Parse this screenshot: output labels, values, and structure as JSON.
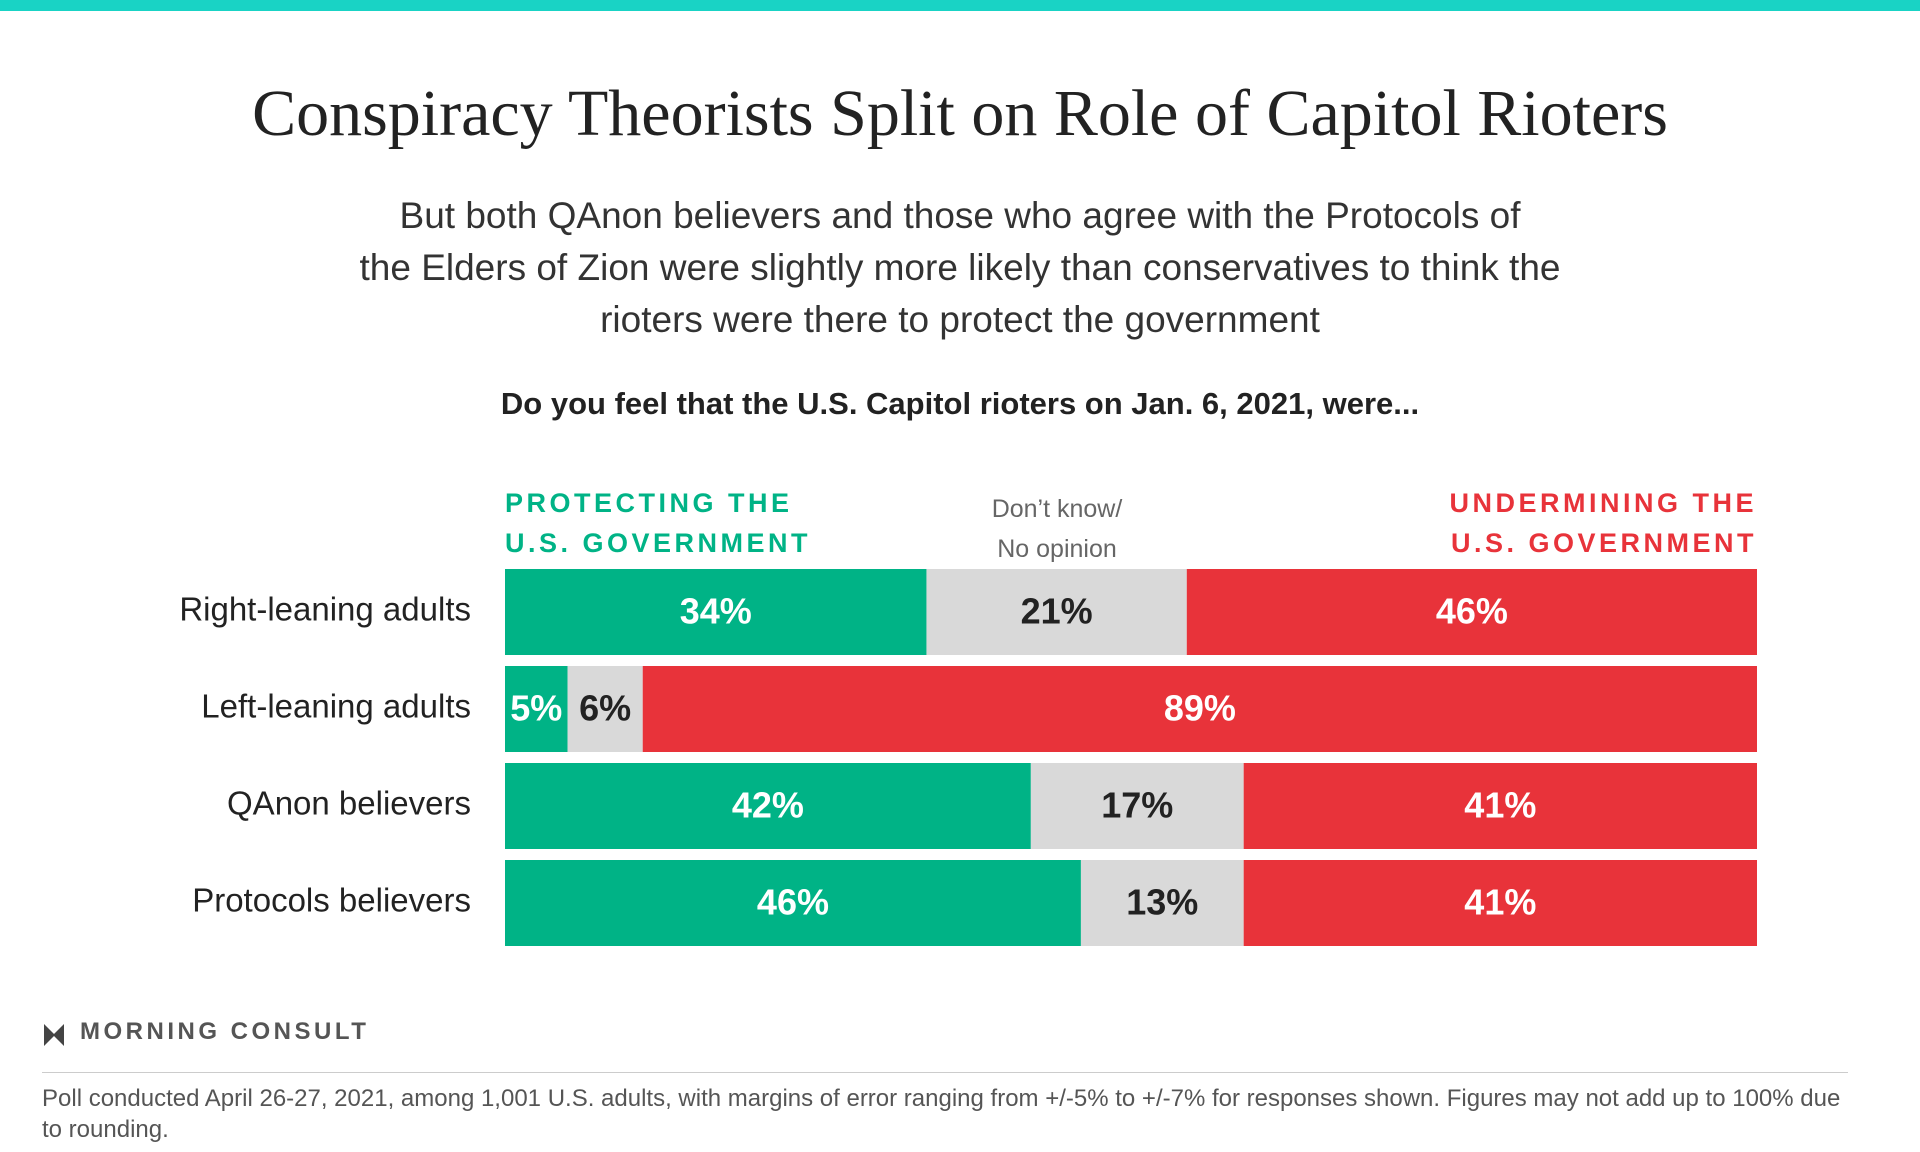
{
  "chart_data": {
    "type": "bar",
    "orientation": "horizontal",
    "stacked": "percent",
    "title": "Conspiracy Theorists Split on Role of Capitol Rioters",
    "subtitle": "But both QAnon believers and those who agree with the Protocols of\nthe Elders of Zion were slightly more likely than conservatives to think the\nrioters were there to protect the government",
    "question": "Do you feel that the U.S. Capitol rioters on Jan. 6, 2021, were...",
    "categories": [
      "Right-leaning adults",
      "Left-leaning adults",
      "QAnon believers",
      "Protocols believers"
    ],
    "series": [
      {
        "name": "PROTECTING THE\nU.S. GOVERNMENT",
        "color": "#00b386",
        "label_color": "#ffffff",
        "values": [
          34,
          5,
          42,
          46
        ],
        "value_labels": [
          "34%",
          "5%",
          "42%",
          "46%"
        ]
      },
      {
        "name": "Don’t know/\nNo opinion",
        "color": "#d9d9d9",
        "label_color": "#222222",
        "values": [
          21,
          6,
          17,
          13
        ],
        "value_labels": [
          "21%",
          "6%",
          "17%",
          "13%"
        ]
      },
      {
        "name": "UNDERMINING THE\nU.S. GOVERNMENT",
        "color": "#e8333a",
        "label_color": "#ffffff",
        "values": [
          46,
          89,
          41,
          41
        ],
        "value_labels": [
          "46%",
          "89%",
          "41%",
          "41%"
        ]
      }
    ],
    "brand": "MORNING CONSULT",
    "footnote": "Poll conducted April 26-27, 2021, among 1,001 U.S. adults, with margins of error ranging from +/-5% to +/-7% for responses shown. Figures may not add up to 100% due to rounding."
  }
}
